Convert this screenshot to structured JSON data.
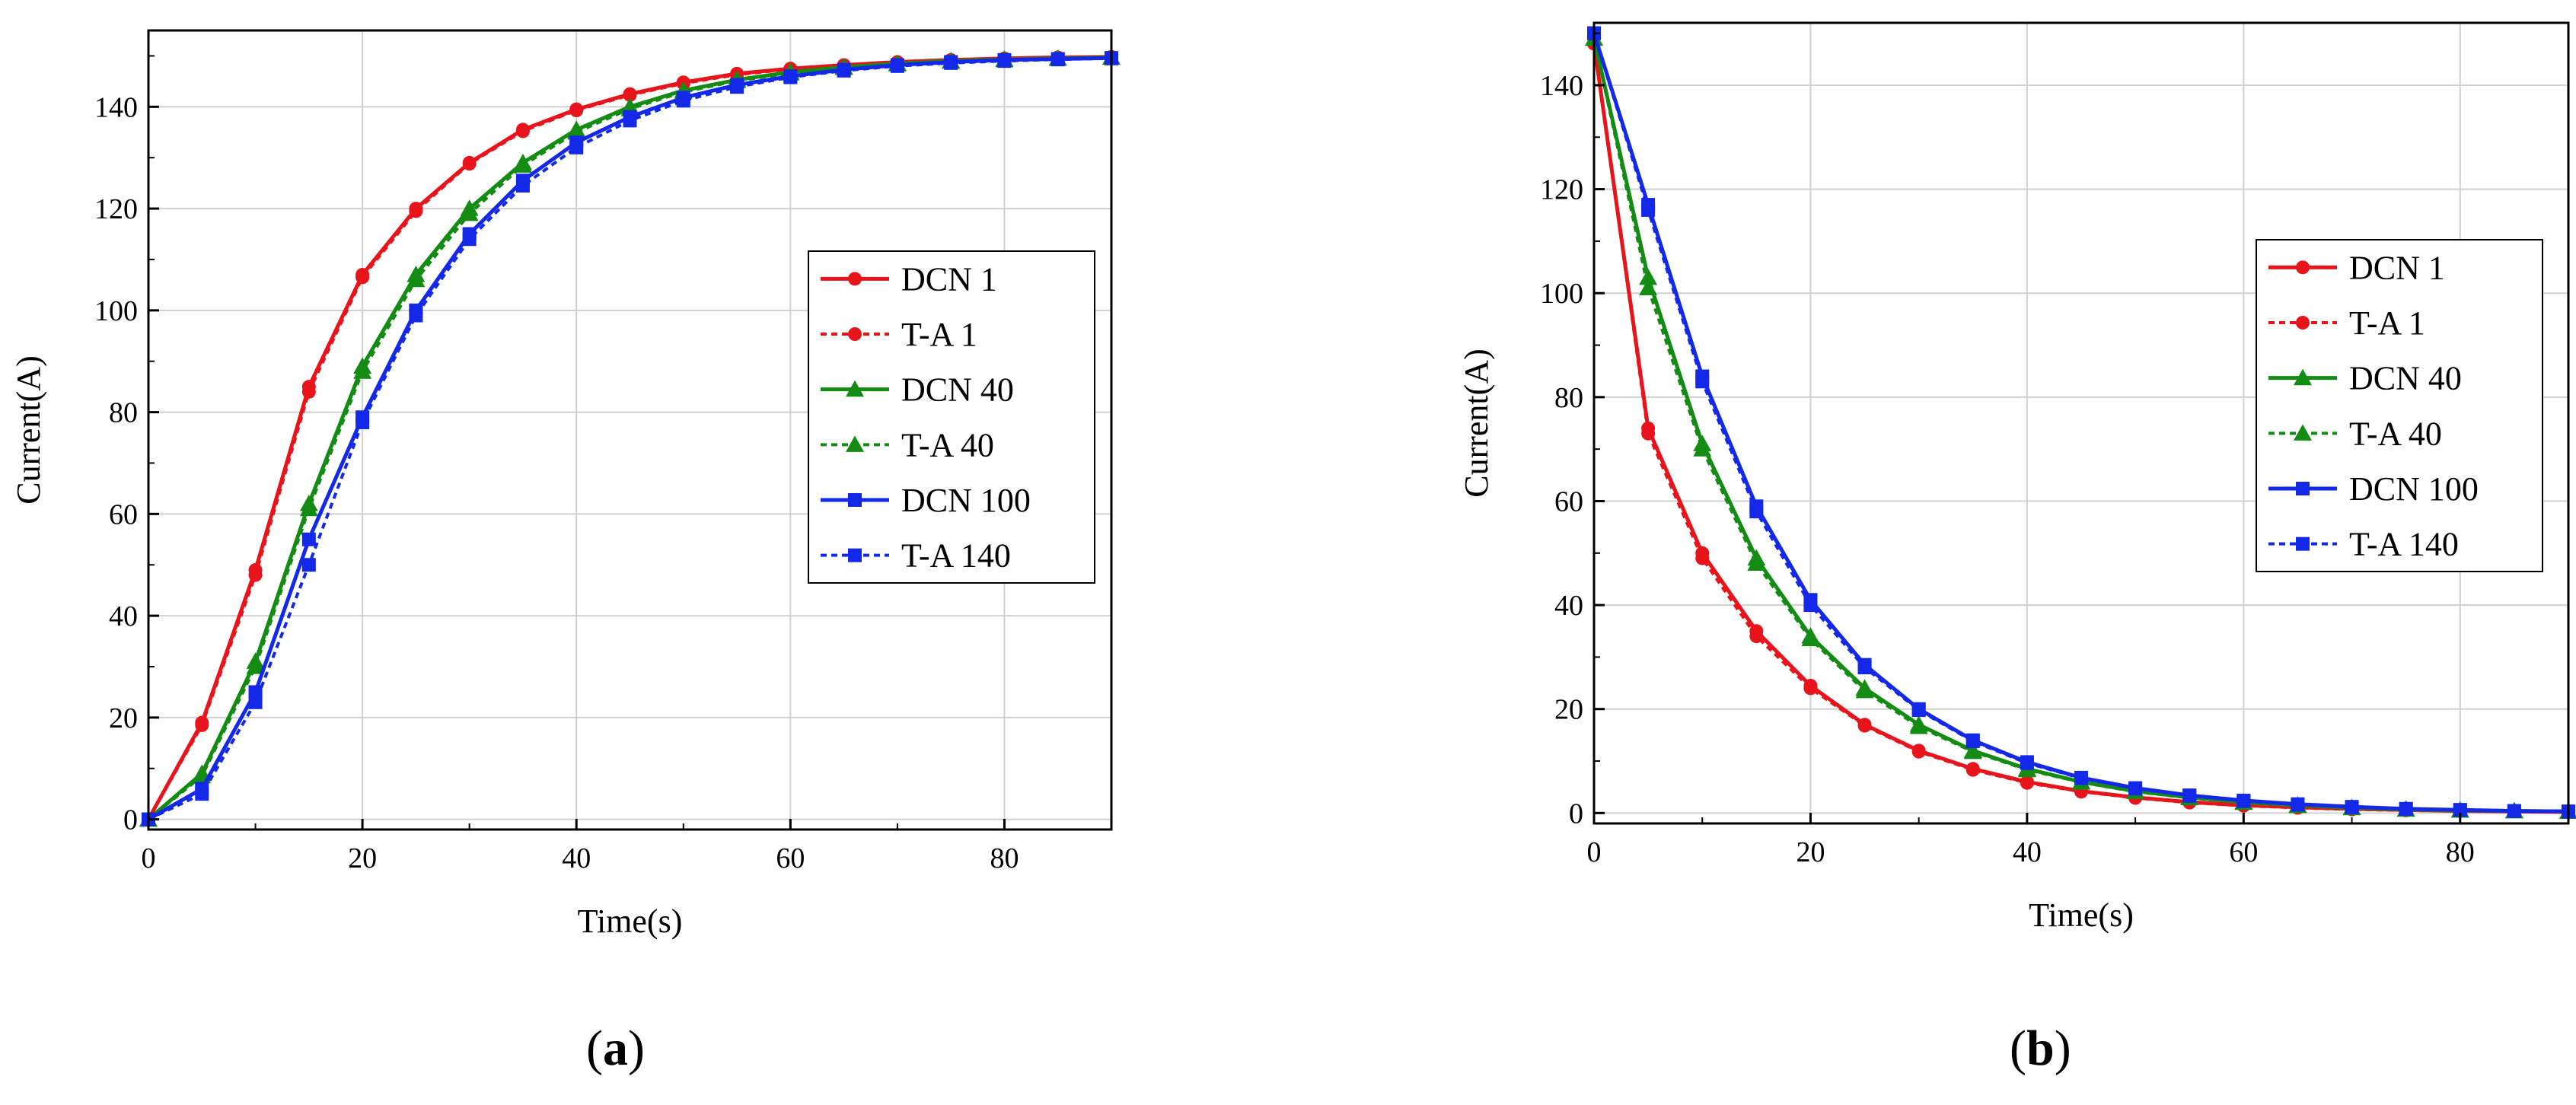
{
  "chart_data": [
    {
      "type": "line",
      "panel": "a",
      "panel_label": "a",
      "title": "",
      "xlabel": "Time(s)",
      "ylabel": "Current(A)",
      "xlim": [
        0,
        90
      ],
      "ylim": [
        -2,
        155
      ],
      "xticks": [
        0,
        20,
        40,
        60,
        80
      ],
      "yticks": [
        0,
        20,
        40,
        60,
        80,
        100,
        120,
        140
      ],
      "xtick_labels": [
        "0",
        "20",
        "40",
        "60",
        "80"
      ],
      "ytick_labels": [
        "0",
        "20",
        "40",
        "60",
        "80",
        "100",
        "120",
        "140"
      ],
      "grid": true,
      "legend_position": "center-right",
      "series": [
        {
          "name": "DCN 1",
          "color": "#e8141c",
          "linestyle": "solid",
          "marker": "circle",
          "x": [
            0,
            5,
            10,
            15,
            20,
            25,
            30,
            35,
            40,
            45,
            50,
            55,
            60,
            65,
            70,
            75,
            80,
            85,
            90
          ],
          "y": [
            0,
            19,
            49,
            85,
            107,
            120,
            129,
            135.5,
            139.5,
            142.5,
            144.8,
            146.5,
            147.5,
            148.2,
            148.8,
            149.2,
            149.5,
            149.7,
            149.8
          ]
        },
        {
          "name": "T-A 1",
          "color": "#e8141c",
          "linestyle": "dotted",
          "marker": "circle",
          "x": [
            0,
            5,
            10,
            15,
            20,
            25,
            30,
            35,
            40,
            45,
            50,
            55,
            60,
            65,
            70,
            75,
            80,
            85,
            90
          ],
          "y": [
            0,
            18.5,
            48,
            84,
            106.5,
            119.5,
            128.8,
            135.2,
            139.3,
            142.3,
            144.6,
            146.3,
            147.4,
            148.1,
            148.7,
            149.1,
            149.4,
            149.6,
            149.8
          ]
        },
        {
          "name": "DCN 40",
          "color": "#148c14",
          "linestyle": "solid",
          "marker": "triangle",
          "x": [
            0,
            5,
            10,
            15,
            20,
            25,
            30,
            35,
            40,
            45,
            50,
            55,
            60,
            65,
            70,
            75,
            80,
            85,
            90
          ],
          "y": [
            0,
            9,
            31,
            62,
            89,
            107,
            120,
            129,
            135.5,
            140,
            143.2,
            145.3,
            146.8,
            147.8,
            148.5,
            149,
            149.3,
            149.5,
            149.7
          ]
        },
        {
          "name": "T-A 40",
          "color": "#148c14",
          "linestyle": "dotted",
          "marker": "triangle",
          "x": [
            0,
            5,
            10,
            15,
            20,
            25,
            30,
            35,
            40,
            45,
            50,
            55,
            60,
            65,
            70,
            75,
            80,
            85,
            90
          ],
          "y": [
            0,
            8.5,
            30,
            61,
            88,
            106,
            119,
            128.5,
            135,
            139.6,
            142.9,
            145.1,
            146.6,
            147.7,
            148.4,
            148.9,
            149.2,
            149.5,
            149.7
          ]
        },
        {
          "name": "DCN 100",
          "color": "#1428e8",
          "linestyle": "solid",
          "marker": "square",
          "x": [
            0,
            5,
            10,
            15,
            20,
            25,
            30,
            35,
            40,
            45,
            50,
            55,
            60,
            65,
            70,
            75,
            80,
            85,
            90
          ],
          "y": [
            0,
            6,
            25,
            55,
            79,
            100,
            115,
            125.5,
            133,
            138,
            141.8,
            144.3,
            146,
            147.3,
            148.2,
            148.8,
            149.2,
            149.4,
            149.6
          ]
        },
        {
          "name": "T-A 140",
          "color": "#1428e8",
          "linestyle": "dotted",
          "marker": "square",
          "x": [
            0,
            5,
            10,
            15,
            20,
            25,
            30,
            35,
            40,
            45,
            50,
            55,
            60,
            65,
            70,
            75,
            80,
            85,
            90
          ],
          "y": [
            0,
            5,
            23,
            50,
            78,
            99,
            114,
            124.5,
            132,
            137.3,
            141.2,
            143.9,
            145.8,
            147.1,
            148,
            148.6,
            149,
            149.3,
            149.5
          ]
        }
      ]
    },
    {
      "type": "line",
      "panel": "b",
      "panel_label": "b",
      "title": "",
      "xlabel": "Time(s)",
      "ylabel": "Current(A)",
      "xlim": [
        0,
        90
      ],
      "ylim": [
        -2,
        152
      ],
      "xticks": [
        0,
        20,
        40,
        60,
        80
      ],
      "yticks": [
        0,
        20,
        40,
        60,
        80,
        100,
        120,
        140
      ],
      "xtick_labels": [
        "0",
        "20",
        "40",
        "60",
        "80"
      ],
      "ytick_labels": [
        "0",
        "20",
        "40",
        "60",
        "80",
        "100",
        "120",
        "140"
      ],
      "grid": true,
      "legend_position": "top-right",
      "series": [
        {
          "name": "DCN 1",
          "color": "#e8141c",
          "linestyle": "solid",
          "marker": "circle",
          "x": [
            0,
            5,
            10,
            15,
            20,
            25,
            30,
            35,
            40,
            45,
            50,
            55,
            60,
            65,
            70,
            75,
            80,
            85,
            90
          ],
          "y": [
            148,
            74,
            50,
            35,
            24.5,
            17,
            12,
            8.5,
            6,
            4.2,
            3,
            2.1,
            1.5,
            1.1,
            0.8,
            0.6,
            0.4,
            0.3,
            0.2
          ]
        },
        {
          "name": "T-A 1",
          "color": "#e8141c",
          "linestyle": "dotted",
          "marker": "circle",
          "x": [
            0,
            5,
            10,
            15,
            20,
            25,
            30,
            35,
            40,
            45,
            50,
            55,
            60,
            65,
            70,
            75,
            80,
            85,
            90
          ],
          "y": [
            148,
            73,
            49,
            34,
            24,
            16.8,
            11.8,
            8.3,
            5.8,
            4.1,
            2.9,
            2,
            1.4,
            1,
            0.7,
            0.5,
            0.4,
            0.3,
            0.2
          ]
        },
        {
          "name": "DCN 40",
          "color": "#148c14",
          "linestyle": "solid",
          "marker": "triangle",
          "x": [
            0,
            5,
            10,
            15,
            20,
            25,
            30,
            35,
            40,
            45,
            50,
            55,
            60,
            65,
            70,
            75,
            80,
            85,
            90
          ],
          "y": [
            149,
            103,
            71,
            49,
            34,
            24,
            17,
            12,
            8.5,
            6,
            4.2,
            3,
            2.1,
            1.5,
            1,
            0.7,
            0.5,
            0.4,
            0.3
          ]
        },
        {
          "name": "T-A 40",
          "color": "#148c14",
          "linestyle": "dotted",
          "marker": "triangle",
          "x": [
            0,
            5,
            10,
            15,
            20,
            25,
            30,
            35,
            40,
            45,
            50,
            55,
            60,
            65,
            70,
            75,
            80,
            85,
            90
          ],
          "y": [
            149,
            101,
            70,
            48,
            33.5,
            23.5,
            16.6,
            11.8,
            8.3,
            5.9,
            4.1,
            2.9,
            2,
            1.4,
            1,
            0.7,
            0.5,
            0.4,
            0.3
          ]
        },
        {
          "name": "DCN 100",
          "color": "#1428e8",
          "linestyle": "solid",
          "marker": "square",
          "x": [
            0,
            5,
            10,
            15,
            20,
            25,
            30,
            35,
            40,
            45,
            50,
            55,
            60,
            65,
            70,
            75,
            80,
            85,
            90
          ],
          "y": [
            150,
            117,
            84,
            59,
            41,
            28.5,
            20,
            14,
            9.8,
            6.8,
            4.8,
            3.4,
            2.4,
            1.7,
            1.2,
            0.8,
            0.6,
            0.4,
            0.3
          ]
        },
        {
          "name": "T-A 140",
          "color": "#1428e8",
          "linestyle": "dotted",
          "marker": "square",
          "x": [
            0,
            5,
            10,
            15,
            20,
            25,
            30,
            35,
            40,
            45,
            50,
            55,
            60,
            65,
            70,
            75,
            80,
            85,
            90
          ],
          "y": [
            150,
            116,
            83,
            58,
            40,
            28,
            19.8,
            13.8,
            9.6,
            6.7,
            4.7,
            3.3,
            2.3,
            1.6,
            1.1,
            0.8,
            0.6,
            0.4,
            0.3
          ]
        }
      ]
    }
  ]
}
